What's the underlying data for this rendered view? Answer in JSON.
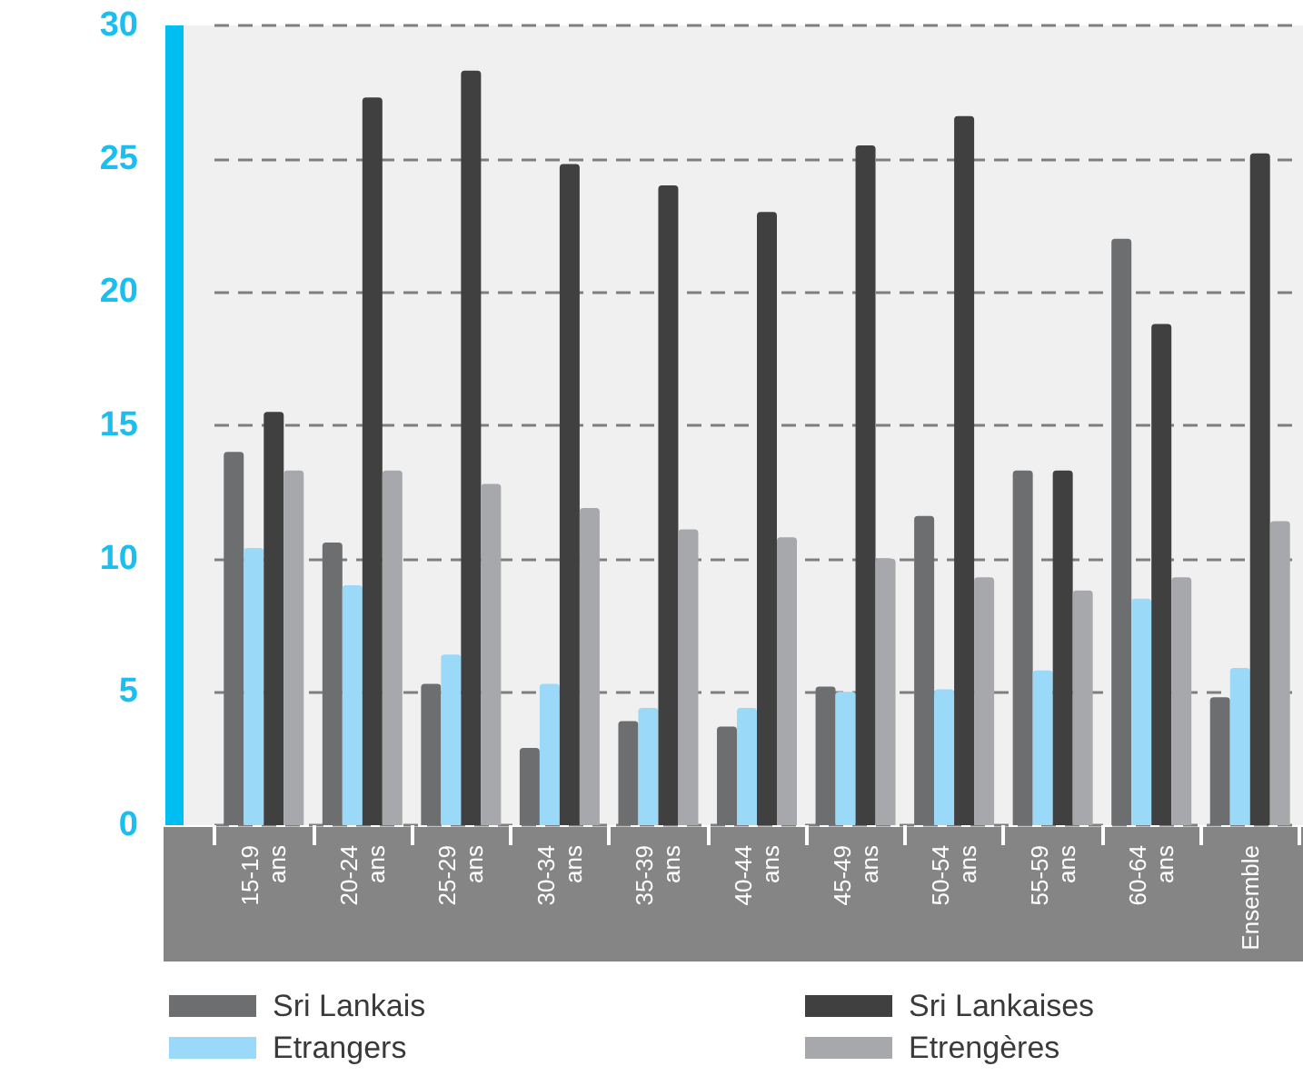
{
  "chart_data": {
    "type": "bar",
    "categories": [
      "15-19 ans",
      "20-24 ans",
      "25-29 ans",
      "30-34 ans",
      "35-39 ans",
      "40-44 ans",
      "45-49 ans",
      "50-54 ans",
      "55-59 ans",
      "60-64 ans",
      "Ensemble"
    ],
    "series": [
      {
        "name": "Sri Lankais",
        "color": "#6d6e70",
        "values": [
          14.0,
          10.6,
          5.3,
          2.9,
          3.9,
          3.7,
          5.2,
          11.6,
          13.3,
          22.0,
          4.8
        ]
      },
      {
        "name": "Etrangers",
        "color": "#9ad9f7",
        "values": [
          10.4,
          9.0,
          6.4,
          5.3,
          4.4,
          4.4,
          5.0,
          5.1,
          5.8,
          8.5,
          5.9
        ]
      },
      {
        "name": "Sri Lankaises",
        "color": "#404040",
        "values": [
          15.5,
          27.3,
          28.3,
          24.8,
          24.0,
          23.0,
          25.5,
          26.6,
          13.3,
          18.8,
          25.2
        ]
      },
      {
        "name": "Etrengères",
        "color": "#a7a8ab",
        "values": [
          13.3,
          13.3,
          12.8,
          11.9,
          11.1,
          10.8,
          10.0,
          9.3,
          8.8,
          9.3,
          11.4
        ]
      }
    ],
    "ylim": [
      0,
      30
    ],
    "yticks": [
      0,
      5,
      10,
      15,
      20,
      25,
      30
    ],
    "grid": "y",
    "legend": "bottom"
  }
}
